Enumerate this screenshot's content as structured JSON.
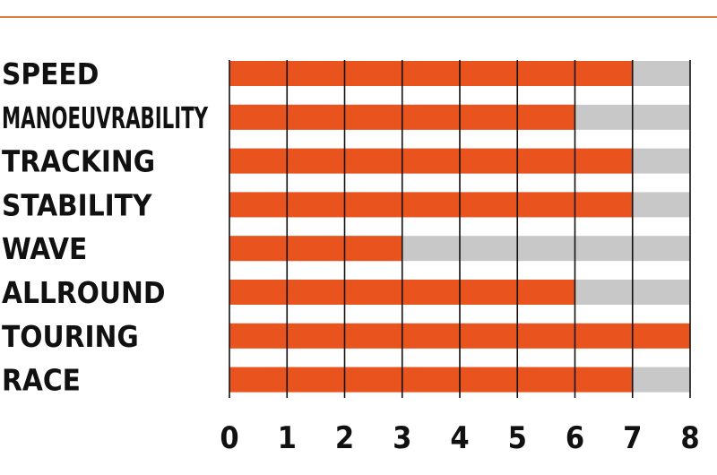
{
  "chart_data": {
    "type": "bar",
    "orientation": "horizontal",
    "stacked_background": true,
    "categories": [
      "SPEED",
      "MANOEUVRABILITY",
      "TRACKING",
      "STABILITY",
      "WAVE",
      "ALLROUND",
      "TOURING",
      "RACE"
    ],
    "values": [
      7,
      6,
      7,
      7,
      3,
      6,
      8,
      7
    ],
    "max": 8,
    "xlim": [
      0,
      8
    ],
    "xticks": [
      "0",
      "1",
      "2",
      "3",
      "4",
      "5",
      "6",
      "7",
      "8"
    ],
    "title": "",
    "xlabel": "",
    "ylabel": "",
    "grid": true,
    "colors": {
      "bar": "#e8531e",
      "remainder": "#c8c8c8",
      "rule": "#e07b3a",
      "gridline": "#111111",
      "text": "#111111"
    }
  }
}
